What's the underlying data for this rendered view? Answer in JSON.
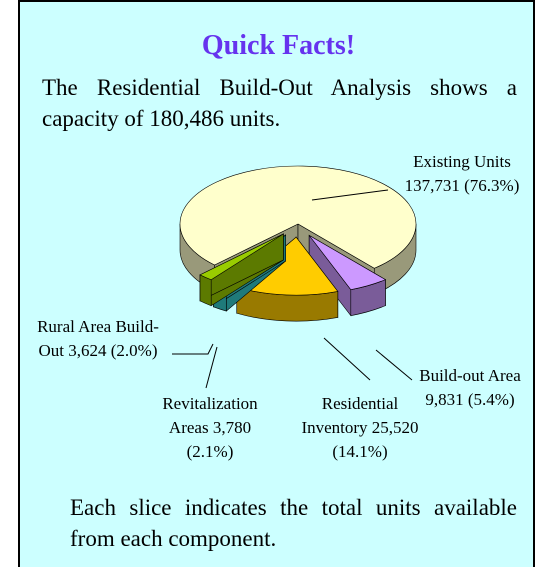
{
  "header": {
    "title": "Quick Facts!",
    "intro": "The Residential Build-Out Analysis shows a capacity of 180,486 units."
  },
  "chart_data": {
    "type": "pie",
    "categories": [
      "Existing Units",
      "Build-out Area",
      "Residential Inventory",
      "Revitalization Areas",
      "Rural Area Build-Out"
    ],
    "values": [
      137731,
      9831,
      25520,
      3780,
      3624
    ],
    "value_labels": [
      "137,731",
      "9,831",
      "25,520",
      "3,780",
      "3,624"
    ],
    "percents": [
      76.3,
      5.4,
      14.1,
      2.1,
      2.0
    ],
    "percent_labels": [
      "(76.3%)",
      "(5.4%)",
      "(14.1%)",
      "(2.1%)",
      "(2.0%)"
    ],
    "colors": [
      "#ffffcc",
      "#cc99ff",
      "#ffcc00",
      "#33cccc",
      "#99cc00"
    ]
  },
  "footer": {
    "text": "Each slice indicates the total units available from each component."
  }
}
